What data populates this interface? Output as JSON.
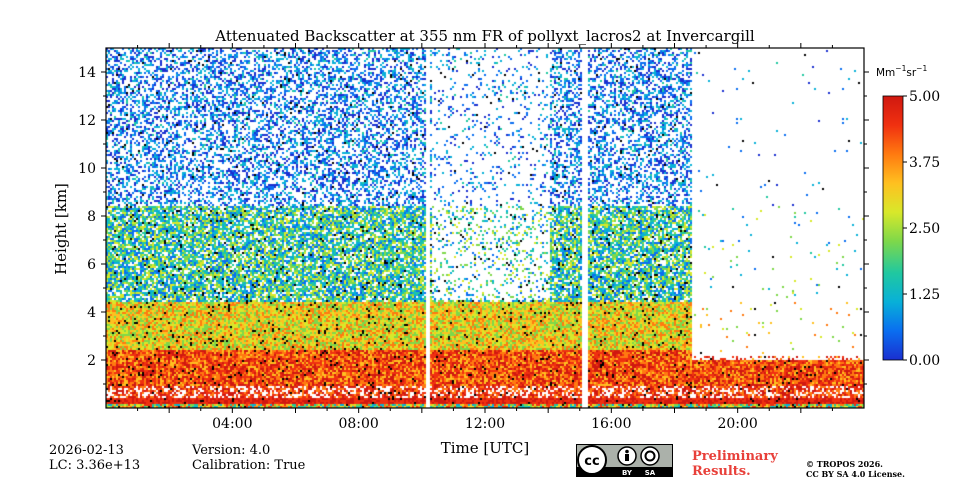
{
  "chart_data": {
    "type": "heatmap",
    "title": "Attenuated Backscatter at 355 nm FR of pollyxt_lacros2 at Invercargill",
    "xlabel": "Time [UTC]",
    "ylabel": "Height [km]",
    "x_range_hours": [
      0,
      24
    ],
    "ylim_km": [
      0,
      15
    ],
    "x_ticks": [
      {
        "value": 4,
        "label": "04:00"
      },
      {
        "value": 8,
        "label": "08:00"
      },
      {
        "value": 12,
        "label": "12:00"
      },
      {
        "value": 16,
        "label": "16:00"
      },
      {
        "value": 20,
        "label": "20:00"
      }
    ],
    "y_ticks": [
      {
        "value": 2,
        "label": "2"
      },
      {
        "value": 4,
        "label": "4"
      },
      {
        "value": 6,
        "label": "6"
      },
      {
        "value": 8,
        "label": "8"
      },
      {
        "value": 10,
        "label": "10"
      },
      {
        "value": 12,
        "label": "12"
      },
      {
        "value": 14,
        "label": "14"
      }
    ],
    "colorbar": {
      "unit_base": "Mm",
      "unit_exp1": "−1",
      "unit_mid": "sr",
      "unit_exp2": "−1",
      "range": [
        0,
        5
      ],
      "ticks": [
        {
          "value": 0,
          "label": "0.00"
        },
        {
          "value": 1.25,
          "label": "1.25"
        },
        {
          "value": 2.5,
          "label": "2.50"
        },
        {
          "value": 3.75,
          "label": "3.75"
        },
        {
          "value": 5,
          "label": "5.00"
        }
      ],
      "colors": [
        "#1a2fd0",
        "#0a6ef0",
        "#08b0d8",
        "#20c8a0",
        "#7ed84a",
        "#d8e82a",
        "#ffc020",
        "#ff7a10",
        "#f03010",
        "#d01810"
      ]
    },
    "data_gaps_hours": [
      10.15,
      15.15
    ]
  },
  "footer": {
    "date": "2026-02-13",
    "lc": "LC: 3.36e+13",
    "version": "Version: 4.0",
    "calibration": "Calibration: True",
    "preliminary_line1": "Preliminary",
    "preliminary_line2": "Results.",
    "copyright_line1": "© TROPOS 2026.",
    "copyright_line2": "CC BY SA 4.0 License.",
    "license_badge": {
      "cc": "cc",
      "by": "BY",
      "sa": "SA"
    }
  }
}
